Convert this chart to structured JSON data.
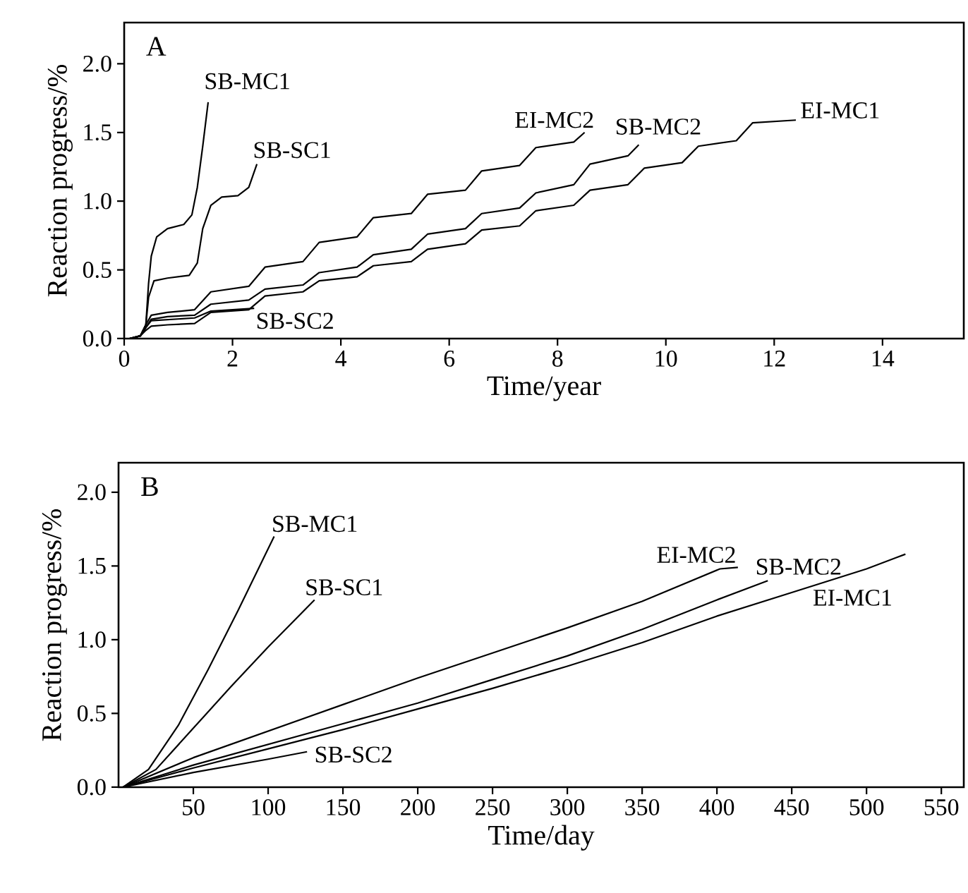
{
  "chart_data": [
    {
      "type": "line",
      "annotations": [
        "A"
      ],
      "xlabel": "Time/year",
      "ylabel": "Reaction progress/%",
      "xlim": [
        0,
        15.5
      ],
      "ylim": [
        0,
        2.3
      ],
      "xticks": [
        0,
        2,
        4,
        6,
        8,
        10,
        12,
        14
      ],
      "yticks": [
        {
          "value": 0,
          "label": "0.0"
        },
        {
          "value": 0.5,
          "label": "0.5"
        },
        {
          "value": 1,
          "label": "1.0"
        },
        {
          "value": 1.5,
          "label": "1.5"
        },
        {
          "value": 2,
          "label": "2.0"
        }
      ],
      "series": [
        {
          "name": "SB-MC1",
          "color": "#000000",
          "x": [
            0.1,
            0.3,
            0.4,
            0.45,
            0.5,
            0.6,
            0.8,
            1.1,
            1.25,
            1.35,
            1.45,
            1.55
          ],
          "values": [
            0,
            0.02,
            0.1,
            0.4,
            0.6,
            0.74,
            0.8,
            0.83,
            0.9,
            1.1,
            1.4,
            1.72
          ]
        },
        {
          "name": "SB-SC1",
          "color": "#000000",
          "x": [
            0.1,
            0.3,
            0.4,
            0.45,
            0.55,
            0.8,
            1.2,
            1.35,
            1.45,
            1.6,
            1.8,
            2.1,
            2.3,
            2.45
          ],
          "values": [
            0,
            0.02,
            0.1,
            0.3,
            0.42,
            0.44,
            0.46,
            0.55,
            0.8,
            0.97,
            1.03,
            1.04,
            1.1,
            1.27
          ]
        },
        {
          "name": "EI-MC2",
          "color": "#000000",
          "x": [
            0.1,
            0.3,
            0.4,
            0.5,
            0.8,
            1.3,
            1.6,
            2.3,
            2.6,
            3.3,
            3.6,
            4.3,
            4.6,
            5.3,
            5.6,
            6.3,
            6.6,
            7.3,
            7.6,
            8.3,
            8.5
          ],
          "values": [
            0,
            0.02,
            0.1,
            0.17,
            0.19,
            0.21,
            0.34,
            0.38,
            0.52,
            0.56,
            0.7,
            0.74,
            0.88,
            0.91,
            1.05,
            1.08,
            1.22,
            1.26,
            1.39,
            1.43,
            1.5
          ]
        },
        {
          "name": "SB-MC2",
          "color": "#000000",
          "x": [
            0.1,
            0.3,
            0.4,
            0.5,
            0.8,
            1.3,
            1.6,
            2.3,
            2.6,
            3.3,
            3.6,
            4.3,
            4.6,
            5.3,
            5.6,
            6.3,
            6.6,
            7.3,
            7.6,
            8.3,
            8.6,
            9.3,
            9.5
          ],
          "values": [
            0,
            0.02,
            0.08,
            0.14,
            0.16,
            0.17,
            0.25,
            0.28,
            0.36,
            0.39,
            0.48,
            0.52,
            0.61,
            0.65,
            0.76,
            0.8,
            0.91,
            0.95,
            1.06,
            1.12,
            1.27,
            1.33,
            1.41
          ]
        },
        {
          "name": "EI-MC1",
          "color": "#000000",
          "x": [
            0.1,
            0.3,
            0.4,
            0.5,
            0.8,
            1.3,
            1.6,
            2.3,
            2.6,
            3.3,
            3.6,
            4.3,
            4.6,
            5.3,
            5.6,
            6.3,
            6.6,
            7.3,
            7.6,
            8.3,
            8.6,
            9.3,
            9.6,
            10.3,
            10.6,
            11.3,
            11.6,
            12.4
          ],
          "values": [
            0,
            0.02,
            0.06,
            0.09,
            0.1,
            0.11,
            0.19,
            0.21,
            0.31,
            0.34,
            0.42,
            0.45,
            0.53,
            0.56,
            0.65,
            0.69,
            0.79,
            0.82,
            0.93,
            0.97,
            1.08,
            1.12,
            1.24,
            1.28,
            1.4,
            1.44,
            1.57,
            1.59
          ]
        },
        {
          "name": "SB-SC2",
          "color": "#000000",
          "x": [
            0.1,
            0.3,
            0.4,
            0.5,
            1.3,
            1.6,
            2.4
          ],
          "values": [
            0,
            0.02,
            0.08,
            0.13,
            0.15,
            0.2,
            0.22
          ]
        }
      ]
    },
    {
      "type": "line",
      "annotations": [
        "B"
      ],
      "xlabel": "Time/day",
      "ylabel": "Reaction progress/%",
      "xlim": [
        0,
        565
      ],
      "ylim": [
        0,
        2.2
      ],
      "xticks": [
        50,
        100,
        150,
        200,
        250,
        300,
        350,
        400,
        450,
        500,
        550
      ],
      "yticks": [
        {
          "value": 0,
          "label": "0.0"
        },
        {
          "value": 0.5,
          "label": "0.5"
        },
        {
          "value": 1,
          "label": "1.0"
        },
        {
          "value": 1.5,
          "label": "1.5"
        },
        {
          "value": 2,
          "label": "2.0"
        }
      ],
      "series": [
        {
          "name": "SB-MC1",
          "color": "#000000",
          "x": [
            3,
            20,
            40,
            60,
            80,
            104
          ],
          "values": [
            0,
            0.12,
            0.42,
            0.8,
            1.2,
            1.7
          ]
        },
        {
          "name": "SB-SC1",
          "color": "#000000",
          "x": [
            3,
            25,
            50,
            75,
            100,
            131
          ],
          "values": [
            0,
            0.12,
            0.4,
            0.68,
            0.95,
            1.27
          ]
        },
        {
          "name": "EI-MC2",
          "color": "#000000",
          "x": [
            3,
            50,
            100,
            150,
            200,
            250,
            300,
            350,
            402,
            414
          ],
          "values": [
            0,
            0.2,
            0.38,
            0.56,
            0.74,
            0.91,
            1.08,
            1.26,
            1.48,
            1.49
          ]
        },
        {
          "name": "SB-MC2",
          "color": "#000000",
          "x": [
            3,
            50,
            100,
            150,
            200,
            250,
            300,
            350,
            400,
            434
          ],
          "values": [
            0,
            0.15,
            0.29,
            0.43,
            0.57,
            0.73,
            0.89,
            1.07,
            1.27,
            1.4
          ]
        },
        {
          "name": "EI-MC1",
          "color": "#000000",
          "x": [
            3,
            50,
            100,
            150,
            200,
            250,
            300,
            350,
            400,
            450,
            500,
            526
          ],
          "values": [
            0,
            0.13,
            0.26,
            0.39,
            0.53,
            0.67,
            0.82,
            0.98,
            1.16,
            1.32,
            1.48,
            1.58
          ]
        },
        {
          "name": "SB-SC2",
          "color": "#000000",
          "x": [
            3,
            50,
            100,
            126
          ],
          "values": [
            0,
            0.1,
            0.19,
            0.24
          ]
        }
      ]
    }
  ]
}
